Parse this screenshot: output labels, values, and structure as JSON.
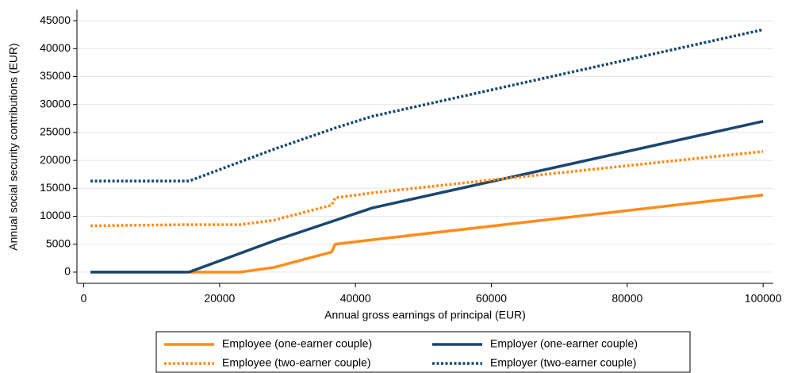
{
  "chart_data": {
    "type": "line",
    "xlabel": "Annual gross earnings of principal (EUR)",
    "ylabel": "Annual social security contributions (EUR)",
    "xlim": [
      -1000,
      101500
    ],
    "ylim": [
      -2000,
      47000
    ],
    "xticks": [
      0,
      20000,
      40000,
      60000,
      80000,
      100000
    ],
    "yticks": [
      0,
      5000,
      10000,
      15000,
      20000,
      25000,
      30000,
      35000,
      40000,
      45000
    ],
    "grid": true,
    "legend": "bottom",
    "series": [
      {
        "name": "Employee (one-earner couple)",
        "color": "#ff8c1a",
        "dash": "solid",
        "x": [
          1000,
          15500,
          23000,
          28000,
          36500,
          37000,
          42500,
          100000
        ],
        "values": [
          0,
          0,
          0,
          850,
          3600,
          5000,
          5800,
          13800
        ]
      },
      {
        "name": "Employer (one-earner couple)",
        "color": "#1a476f",
        "dash": "solid",
        "x": [
          1000,
          15500,
          28000,
          42500,
          100000
        ],
        "values": [
          0,
          0,
          5600,
          11500,
          27000
        ]
      },
      {
        "name": "Employee (two-earner couple)",
        "color": "#ff8c1a",
        "dash": "dotted",
        "x": [
          1000,
          15500,
          23000,
          28000,
          36500,
          37000,
          42500,
          60000,
          100000
        ],
        "values": [
          8300,
          8500,
          8500,
          9300,
          12000,
          13300,
          14200,
          16500,
          21600
        ]
      },
      {
        "name": "Employer (two-earner couple)",
        "color": "#1a476f",
        "dash": "dotted",
        "x": [
          1000,
          15500,
          28000,
          37000,
          42500,
          100000
        ],
        "values": [
          16300,
          16300,
          22000,
          25800,
          27900,
          43400
        ]
      }
    ]
  }
}
